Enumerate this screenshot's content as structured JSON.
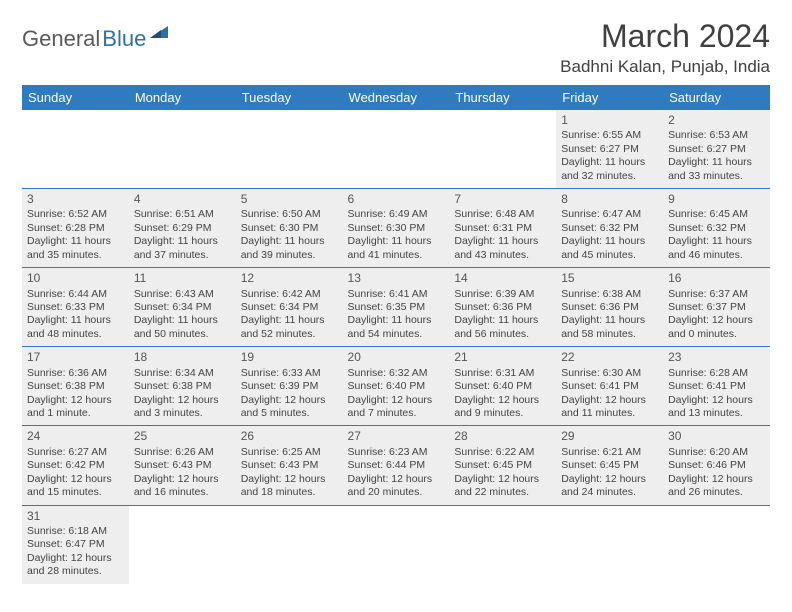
{
  "brand": {
    "part1": "General",
    "part2": "Blue"
  },
  "title": "March 2024",
  "location": "Badhni Kalan, Punjab, India",
  "colors": {
    "header_bg": "#2f7bbf",
    "header_fg": "#ffffff",
    "cell_bg": "#eeeeee",
    "border": "#2f7bbf",
    "logo_gray": "#5a5a5a",
    "logo_blue": "#2f6fad"
  },
  "daysOfWeek": [
    "Sunday",
    "Monday",
    "Tuesday",
    "Wednesday",
    "Thursday",
    "Friday",
    "Saturday"
  ],
  "weeks": [
    [
      null,
      null,
      null,
      null,
      null,
      {
        "n": "1",
        "sr": "Sunrise: 6:55 AM",
        "ss": "Sunset: 6:27 PM",
        "d1": "Daylight: 11 hours",
        "d2": "and 32 minutes."
      },
      {
        "n": "2",
        "sr": "Sunrise: 6:53 AM",
        "ss": "Sunset: 6:27 PM",
        "d1": "Daylight: 11 hours",
        "d2": "and 33 minutes."
      }
    ],
    [
      {
        "n": "3",
        "sr": "Sunrise: 6:52 AM",
        "ss": "Sunset: 6:28 PM",
        "d1": "Daylight: 11 hours",
        "d2": "and 35 minutes."
      },
      {
        "n": "4",
        "sr": "Sunrise: 6:51 AM",
        "ss": "Sunset: 6:29 PM",
        "d1": "Daylight: 11 hours",
        "d2": "and 37 minutes."
      },
      {
        "n": "5",
        "sr": "Sunrise: 6:50 AM",
        "ss": "Sunset: 6:30 PM",
        "d1": "Daylight: 11 hours",
        "d2": "and 39 minutes."
      },
      {
        "n": "6",
        "sr": "Sunrise: 6:49 AM",
        "ss": "Sunset: 6:30 PM",
        "d1": "Daylight: 11 hours",
        "d2": "and 41 minutes."
      },
      {
        "n": "7",
        "sr": "Sunrise: 6:48 AM",
        "ss": "Sunset: 6:31 PM",
        "d1": "Daylight: 11 hours",
        "d2": "and 43 minutes."
      },
      {
        "n": "8",
        "sr": "Sunrise: 6:47 AM",
        "ss": "Sunset: 6:32 PM",
        "d1": "Daylight: 11 hours",
        "d2": "and 45 minutes."
      },
      {
        "n": "9",
        "sr": "Sunrise: 6:45 AM",
        "ss": "Sunset: 6:32 PM",
        "d1": "Daylight: 11 hours",
        "d2": "and 46 minutes."
      }
    ],
    [
      {
        "n": "10",
        "sr": "Sunrise: 6:44 AM",
        "ss": "Sunset: 6:33 PM",
        "d1": "Daylight: 11 hours",
        "d2": "and 48 minutes."
      },
      {
        "n": "11",
        "sr": "Sunrise: 6:43 AM",
        "ss": "Sunset: 6:34 PM",
        "d1": "Daylight: 11 hours",
        "d2": "and 50 minutes."
      },
      {
        "n": "12",
        "sr": "Sunrise: 6:42 AM",
        "ss": "Sunset: 6:34 PM",
        "d1": "Daylight: 11 hours",
        "d2": "and 52 minutes."
      },
      {
        "n": "13",
        "sr": "Sunrise: 6:41 AM",
        "ss": "Sunset: 6:35 PM",
        "d1": "Daylight: 11 hours",
        "d2": "and 54 minutes."
      },
      {
        "n": "14",
        "sr": "Sunrise: 6:39 AM",
        "ss": "Sunset: 6:36 PM",
        "d1": "Daylight: 11 hours",
        "d2": "and 56 minutes."
      },
      {
        "n": "15",
        "sr": "Sunrise: 6:38 AM",
        "ss": "Sunset: 6:36 PM",
        "d1": "Daylight: 11 hours",
        "d2": "and 58 minutes."
      },
      {
        "n": "16",
        "sr": "Sunrise: 6:37 AM",
        "ss": "Sunset: 6:37 PM",
        "d1": "Daylight: 12 hours",
        "d2": "and 0 minutes."
      }
    ],
    [
      {
        "n": "17",
        "sr": "Sunrise: 6:36 AM",
        "ss": "Sunset: 6:38 PM",
        "d1": "Daylight: 12 hours",
        "d2": "and 1 minute."
      },
      {
        "n": "18",
        "sr": "Sunrise: 6:34 AM",
        "ss": "Sunset: 6:38 PM",
        "d1": "Daylight: 12 hours",
        "d2": "and 3 minutes."
      },
      {
        "n": "19",
        "sr": "Sunrise: 6:33 AM",
        "ss": "Sunset: 6:39 PM",
        "d1": "Daylight: 12 hours",
        "d2": "and 5 minutes."
      },
      {
        "n": "20",
        "sr": "Sunrise: 6:32 AM",
        "ss": "Sunset: 6:40 PM",
        "d1": "Daylight: 12 hours",
        "d2": "and 7 minutes."
      },
      {
        "n": "21",
        "sr": "Sunrise: 6:31 AM",
        "ss": "Sunset: 6:40 PM",
        "d1": "Daylight: 12 hours",
        "d2": "and 9 minutes."
      },
      {
        "n": "22",
        "sr": "Sunrise: 6:30 AM",
        "ss": "Sunset: 6:41 PM",
        "d1": "Daylight: 12 hours",
        "d2": "and 11 minutes."
      },
      {
        "n": "23",
        "sr": "Sunrise: 6:28 AM",
        "ss": "Sunset: 6:41 PM",
        "d1": "Daylight: 12 hours",
        "d2": "and 13 minutes."
      }
    ],
    [
      {
        "n": "24",
        "sr": "Sunrise: 6:27 AM",
        "ss": "Sunset: 6:42 PM",
        "d1": "Daylight: 12 hours",
        "d2": "and 15 minutes."
      },
      {
        "n": "25",
        "sr": "Sunrise: 6:26 AM",
        "ss": "Sunset: 6:43 PM",
        "d1": "Daylight: 12 hours",
        "d2": "and 16 minutes."
      },
      {
        "n": "26",
        "sr": "Sunrise: 6:25 AM",
        "ss": "Sunset: 6:43 PM",
        "d1": "Daylight: 12 hours",
        "d2": "and 18 minutes."
      },
      {
        "n": "27",
        "sr": "Sunrise: 6:23 AM",
        "ss": "Sunset: 6:44 PM",
        "d1": "Daylight: 12 hours",
        "d2": "and 20 minutes."
      },
      {
        "n": "28",
        "sr": "Sunrise: 6:22 AM",
        "ss": "Sunset: 6:45 PM",
        "d1": "Daylight: 12 hours",
        "d2": "and 22 minutes."
      },
      {
        "n": "29",
        "sr": "Sunrise: 6:21 AM",
        "ss": "Sunset: 6:45 PM",
        "d1": "Daylight: 12 hours",
        "d2": "and 24 minutes."
      },
      {
        "n": "30",
        "sr": "Sunrise: 6:20 AM",
        "ss": "Sunset: 6:46 PM",
        "d1": "Daylight: 12 hours",
        "d2": "and 26 minutes."
      }
    ],
    [
      {
        "n": "31",
        "sr": "Sunrise: 6:18 AM",
        "ss": "Sunset: 6:47 PM",
        "d1": "Daylight: 12 hours",
        "d2": "and 28 minutes."
      },
      null,
      null,
      null,
      null,
      null,
      null
    ]
  ]
}
